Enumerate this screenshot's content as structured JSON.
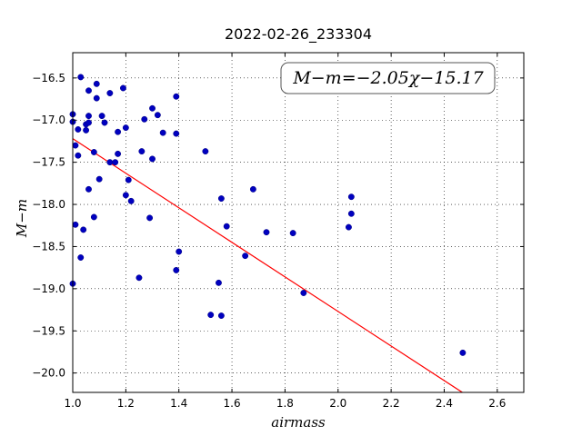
{
  "chart_data": {
    "type": "scatter",
    "title": "2022-02-26_233304",
    "xlabel": "airmass",
    "ylabel": "M−m",
    "xlim": [
      1.0,
      2.7
    ],
    "ylim": [
      -16.2,
      -20.23
    ],
    "y_inverted": true,
    "xticks": [
      1.0,
      1.2,
      1.4,
      1.6,
      1.8,
      2.0,
      2.2,
      2.4,
      2.6
    ],
    "xtick_labels": [
      "1.0",
      "1.2",
      "1.4",
      "1.6",
      "1.8",
      "2.0",
      "2.2",
      "2.4",
      "2.6"
    ],
    "yticks": [
      -16.5,
      -17.0,
      -17.5,
      -18.0,
      -18.5,
      -19.0,
      -19.5,
      -20.0
    ],
    "ytick_labels": [
      "−16.5",
      "−17.0",
      "−17.5",
      "−18.0",
      "−18.5",
      "−19.0",
      "−19.5",
      "−20.0"
    ],
    "grid": true,
    "annotation": "M−m=−2.05χ−15.17",
    "points_color": "#0000bf",
    "fit_color": "#ff0000",
    "fit_line": {
      "slope": -2.05,
      "intercept": -15.17
    },
    "points": [
      [
        1.0,
        -16.93
      ],
      [
        1.0,
        -17.02
      ],
      [
        1.0,
        -18.94
      ],
      [
        1.01,
        -17.3
      ],
      [
        1.01,
        -18.24
      ],
      [
        1.02,
        -17.11
      ],
      [
        1.02,
        -17.42
      ],
      [
        1.03,
        -16.49
      ],
      [
        1.03,
        -18.63
      ],
      [
        1.04,
        -18.3
      ],
      [
        1.05,
        -17.05
      ],
      [
        1.05,
        -17.12
      ],
      [
        1.06,
        -17.03
      ],
      [
        1.06,
        -16.95
      ],
      [
        1.06,
        -16.65
      ],
      [
        1.06,
        -17.82
      ],
      [
        1.08,
        -17.38
      ],
      [
        1.08,
        -18.15
      ],
      [
        1.09,
        -16.57
      ],
      [
        1.09,
        -16.74
      ],
      [
        1.1,
        -17.7
      ],
      [
        1.11,
        -16.95
      ],
      [
        1.12,
        -17.03
      ],
      [
        1.14,
        -16.68
      ],
      [
        1.14,
        -17.5
      ],
      [
        1.16,
        -17.5
      ],
      [
        1.17,
        -17.14
      ],
      [
        1.17,
        -17.4
      ],
      [
        1.19,
        -16.62
      ],
      [
        1.2,
        -17.09
      ],
      [
        1.2,
        -17.89
      ],
      [
        1.21,
        -17.71
      ],
      [
        1.22,
        -17.96
      ],
      [
        1.25,
        -18.87
      ],
      [
        1.26,
        -17.37
      ],
      [
        1.27,
        -16.99
      ],
      [
        1.29,
        -18.16
      ],
      [
        1.3,
        -17.46
      ],
      [
        1.3,
        -16.86
      ],
      [
        1.32,
        -16.94
      ],
      [
        1.34,
        -17.15
      ],
      [
        1.39,
        -16.72
      ],
      [
        1.39,
        -17.16
      ],
      [
        1.39,
        -18.78
      ],
      [
        1.4,
        -18.56
      ],
      [
        1.5,
        -17.37
      ],
      [
        1.52,
        -19.31
      ],
      [
        1.55,
        -18.93
      ],
      [
        1.56,
        -19.32
      ],
      [
        1.56,
        -17.93
      ],
      [
        1.58,
        -18.26
      ],
      [
        1.65,
        -18.61
      ],
      [
        1.68,
        -17.82
      ],
      [
        1.73,
        -18.33
      ],
      [
        1.83,
        -18.34
      ],
      [
        1.87,
        -19.05
      ],
      [
        2.04,
        -18.27
      ],
      [
        2.05,
        -17.91
      ],
      [
        2.05,
        -18.11
      ],
      [
        2.47,
        -19.76
      ]
    ]
  }
}
